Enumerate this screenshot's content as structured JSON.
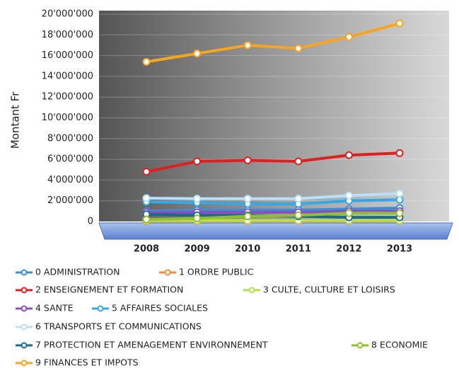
{
  "chart_data": {
    "type": "line",
    "y_label": "Montant Fr",
    "categories": [
      "2008",
      "2009",
      "2010",
      "2011",
      "2012",
      "2013"
    ],
    "ylim": [
      0,
      20000000
    ],
    "yticks": [
      0,
      {
        "value": 2000000,
        "label": "2'000'000"
      },
      {
        "value": 4000000,
        "label": "4'000'000"
      },
      {
        "value": 6000000,
        "label": "6'000'000"
      },
      {
        "value": 8000000,
        "label": "8'000'000"
      },
      {
        "value": 10000000,
        "label": "10'000'000"
      },
      {
        "value": 12000000,
        "label": "12'000'000"
      },
      {
        "value": 14000000,
        "label": "14'000'000"
      },
      {
        "value": 16000000,
        "label": "16'000'000"
      },
      {
        "value": 18000000,
        "label": "18'000'000"
      },
      {
        "value": 20000000,
        "label": "20'000'000"
      }
    ],
    "grid": true,
    "series": [
      {
        "name": "0 ADMINISTRATION",
        "color": "#3a8fd6",
        "values": [
          1000000,
          1100000,
          1100000,
          1100000,
          1200000,
          1300000
        ]
      },
      {
        "name": "1 ORDRE PUBLIC",
        "color": "#f58a3a",
        "values": [
          50000,
          50000,
          50000,
          50000,
          50000,
          50000
        ]
      },
      {
        "name": "2 ENSEIGNEMENT ET FORMATION",
        "color": "#e02020",
        "values": [
          4800000,
          5800000,
          5900000,
          5800000,
          6400000,
          6600000
        ]
      },
      {
        "name": "3 CULTE, CULTURE ET LOISIRS",
        "color": "#b8e04a",
        "values": [
          100000,
          100000,
          100000,
          100000,
          100000,
          100000
        ]
      },
      {
        "name": "4 SANTE",
        "color": "#8a4fc0",
        "values": [
          900000,
          900000,
          900000,
          900000,
          1000000,
          1000000
        ]
      },
      {
        "name": "5 AFFAIRES SOCIALES",
        "color": "#35a8e6",
        "values": [
          1900000,
          1800000,
          1700000,
          1700000,
          2000000,
          2100000
        ]
      },
      {
        "name": "6 TRANSPORTS ET COMMUNICATIONS",
        "color": "#b8e0f8",
        "values": [
          2250000,
          2200000,
          2200000,
          2200000,
          2500000,
          2700000
        ]
      },
      {
        "name": "7 PROTECTION ET AMENAGEMENT ENVIRONNEMENT",
        "color": "#1a6a8a",
        "values": [
          700000,
          600000,
          600000,
          500000,
          400000,
          400000
        ]
      },
      {
        "name": "8 ECONOMIE",
        "color": "#90c030",
        "values": [
          200000,
          300000,
          500000,
          600000,
          800000,
          800000
        ]
      },
      {
        "name": "9 FINANCES ET IMPOTS",
        "color": "#f7a520",
        "values": [
          15400000,
          16200000,
          17000000,
          16700000,
          17800000,
          19100000
        ]
      }
    ]
  }
}
